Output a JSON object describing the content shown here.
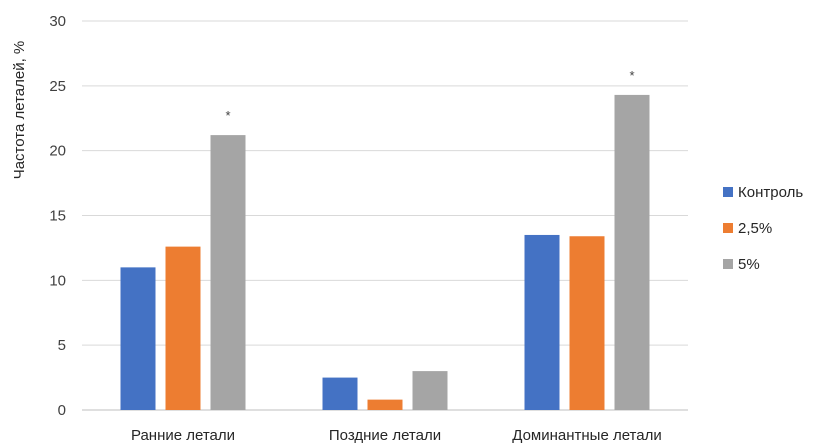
{
  "chart_data": {
    "type": "bar",
    "title": "",
    "xlabel": "",
    "ylabel": "Частота леталей, %",
    "ylim": [
      0,
      30
    ],
    "yticks": [
      0,
      5,
      10,
      15,
      20,
      25,
      30
    ],
    "grid": true,
    "legend_position": "right",
    "categories": [
      "Ранние летали",
      "Поздние летали",
      "Доминантные летали"
    ],
    "series": [
      {
        "name": "Контроль",
        "color": "#4472c4",
        "values": [
          11.0,
          2.5,
          13.5
        ]
      },
      {
        "name": "2,5%",
        "color": "#ed7d31",
        "values": [
          12.6,
          0.8,
          13.4
        ]
      },
      {
        "name": "5%",
        "color": "#a5a5a5",
        "values": [
          21.2,
          3.0,
          24.3
        ]
      }
    ],
    "annotations": [
      {
        "category_index": 0,
        "series_index": 2,
        "text": "*"
      },
      {
        "category_index": 2,
        "series_index": 2,
        "text": "*"
      }
    ]
  }
}
